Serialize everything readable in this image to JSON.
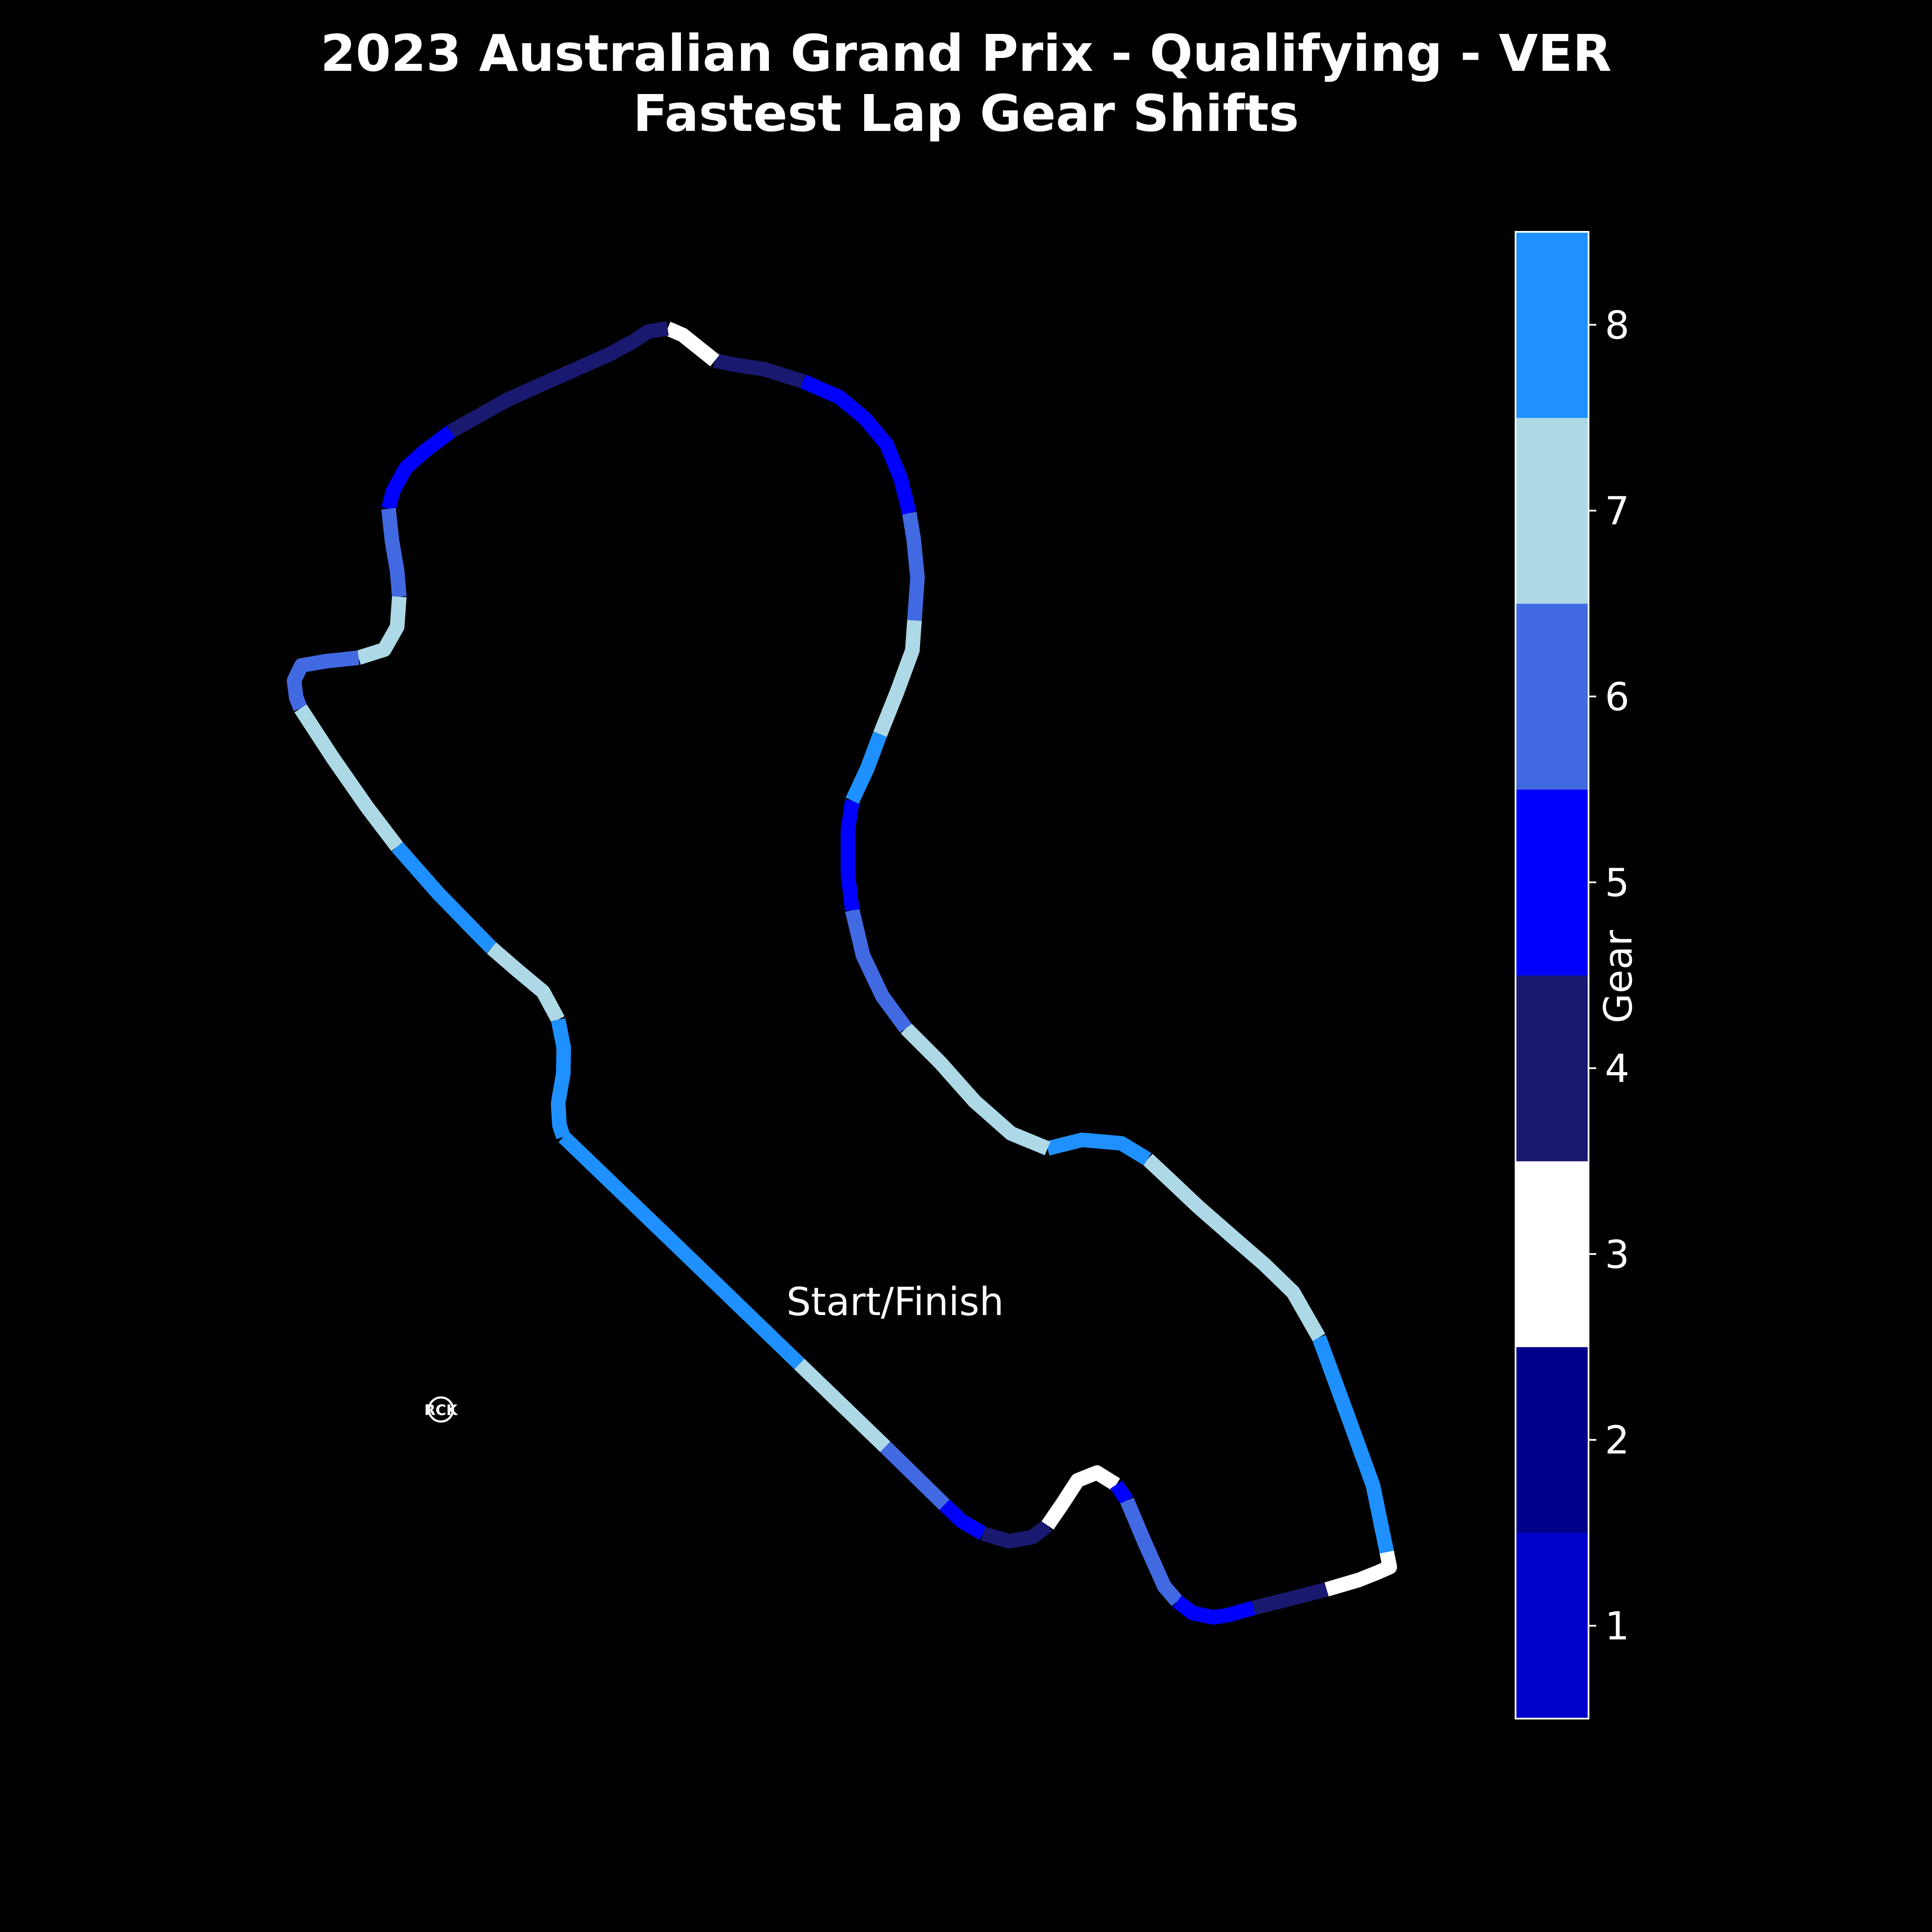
{
  "chart_data": {
    "type": "track-map",
    "title": "2023 Australian Grand Prix - Qualifying - VER",
    "subtitle": "Fastest Lap Gear Shifts",
    "annotation": "Start/Finish",
    "colorbar": {
      "label": "Gear",
      "ticks": [
        "1",
        "2",
        "3",
        "4",
        "5",
        "6",
        "7",
        "8"
      ],
      "colors": [
        "#0000CD",
        "#00008B",
        "#FFFFFF",
        "#191970",
        "#0000FF",
        "#4169E1",
        "#ADD8E6",
        "#1E90FF"
      ]
    },
    "segments": [
      {
        "gear": 8
      },
      {
        "gear": 7
      },
      {
        "gear": 6
      },
      {
        "gear": 5
      },
      {
        "gear": 4
      },
      {
        "gear": 3
      },
      {
        "gear": 5
      },
      {
        "gear": 6
      },
      {
        "gear": 5
      },
      {
        "gear": 4
      },
      {
        "gear": 3
      },
      {
        "gear": 8
      },
      {
        "gear": 7
      },
      {
        "gear": 8
      },
      {
        "gear": 7
      },
      {
        "gear": 6
      },
      {
        "gear": 5
      },
      {
        "gear": 8
      },
      {
        "gear": 7
      },
      {
        "gear": 6
      },
      {
        "gear": 5
      },
      {
        "gear": 4
      },
      {
        "gear": 3
      },
      {
        "gear": 4
      },
      {
        "gear": 5
      },
      {
        "gear": 6
      },
      {
        "gear": 7
      },
      {
        "gear": 6
      },
      {
        "gear": 7
      },
      {
        "gear": 8
      },
      {
        "gear": 7
      },
      {
        "gear": 8
      },
      {
        "gear": 7
      },
      {
        "gear": 8
      }
    ]
  },
  "logo": {
    "text": "RCK"
  }
}
